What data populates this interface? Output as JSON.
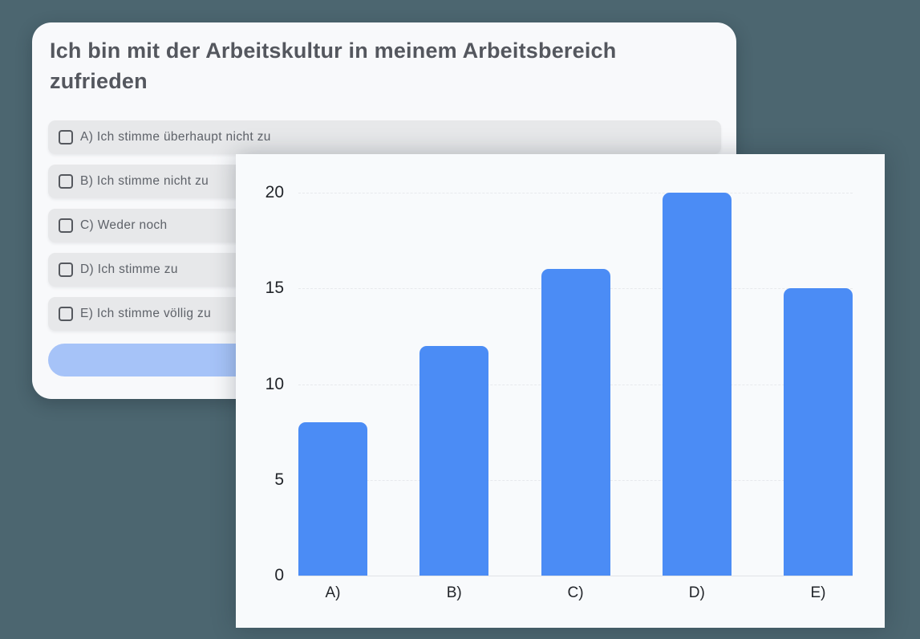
{
  "background_color": "#4c6670",
  "question_card": {
    "title": "Ich bin mit der Arbeitskultur in meinem Arbeitsbereich zufrieden",
    "options": [
      {
        "label": "A) Ich stimme überhaupt nicht zu"
      },
      {
        "label": "B) Ich stimme nicht zu"
      },
      {
        "label": "C) Weder noch"
      },
      {
        "label": "D) Ich stimme zu"
      },
      {
        "label": "E) Ich stimme völlig zu"
      }
    ],
    "submit_button_label": ""
  },
  "icons": {
    "checkbox": "empty-rounded-square-outline"
  },
  "chart_data": {
    "type": "bar",
    "categories": [
      "A)",
      "B)",
      "C)",
      "D)",
      "E)"
    ],
    "values": [
      8,
      12,
      16,
      20,
      15
    ],
    "title": "",
    "xlabel": "",
    "ylabel": "",
    "ylim": [
      0,
      20
    ],
    "yticks": [
      0,
      5,
      10,
      15,
      20
    ],
    "grid": true,
    "legend": "none",
    "bar_color": "#4b8cf5"
  },
  "colors": {
    "page_background": "#4c6670",
    "card_background": "#f8f9fb",
    "option_row_background": "#e7e8ea",
    "title_text": "#54575e",
    "option_text": "#5e6269",
    "submit_pill": "#a6c3f8",
    "chart_background": "#f8fafc",
    "bar_fill": "#4b8cf5",
    "axis_text": "#22252a",
    "gridline": "#e7e9ed"
  }
}
